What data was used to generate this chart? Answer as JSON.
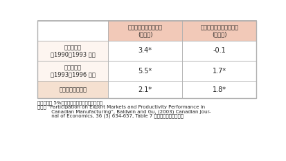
{
  "header_bg": "#f2c9b8",
  "row_bg_light": "#fdf5f0",
  "row_bg_last": "#f5e0d0",
  "border_color": "#b0b0b0",
  "text_color": "#222222",
  "col_header1_line1": "労働生産性成長率の差",
  "col_header1_line2": "(％／年)",
  "col_header2_line1": "全要素生産性成長率の差",
  "col_header2_line2": "(％／年)",
  "row_label1_line1": "輸出参入前",
  "row_label1_line2": "（1990～1993 年）",
  "row_label2_line1": "輸出参入後",
  "row_label2_line2": "（1993～1996 年）",
  "row_label3": "輸出参入前後の差",
  "values": [
    [
      "3.4*",
      "-0.1"
    ],
    [
      "5.5*",
      "1.7*"
    ],
    [
      "2.1*",
      "1.8*"
    ]
  ],
  "note1": "備考：＊は 5%の有意水準があることを示す。",
  "note2": "資料： “Participation on Export Markets and Productivity Performance in",
  "note3": "         Canadian Manufacturing”, Baldwin and Gu, (2003) Canadian Jour-",
  "note4": "         nal of Economics, 36 (3) 634-657, Table 7 から経済産業省作成。",
  "figsize": [
    4.13,
    2.33
  ],
  "dpi": 100
}
